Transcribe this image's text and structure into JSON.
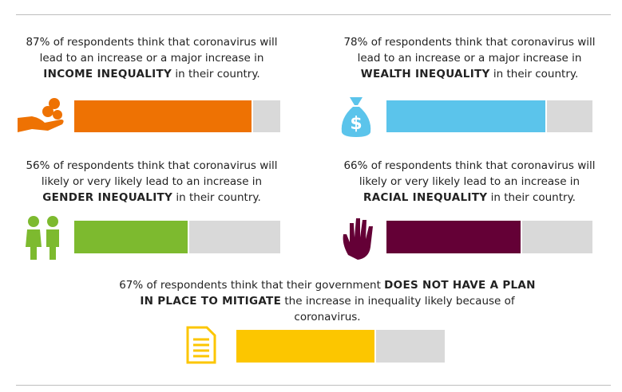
{
  "chart_data": [
    {
      "type": "bar",
      "values": [
        87
      ],
      "value_labels": [
        "87%"
      ],
      "xlim": [
        0,
        100
      ],
      "color": "#ee7203",
      "title_lead": "of respondents think that coronavirus will lead to an increase or a major increase in",
      "title_emphasis": "INCOME INEQUALITY",
      "title_tail": "in their country."
    },
    {
      "type": "bar",
      "values": [
        78
      ],
      "value_labels": [
        "78%"
      ],
      "xlim": [
        0,
        100
      ],
      "color": "#5bc4eb",
      "title_lead": "of respondents think that coronavirus will lead to an increase or a major increase in",
      "title_emphasis": "WEALTH INEQUALITY",
      "title_tail": "in their country."
    },
    {
      "type": "bar",
      "values": [
        56
      ],
      "value_labels": [
        "56%"
      ],
      "xlim": [
        0,
        100
      ],
      "color": "#7dba2f",
      "title_lead": "of respondents think that coronavirus will likely or very likely lead to an increase in",
      "title_emphasis": "GENDER INEQUALITY",
      "title_tail": "in their country."
    },
    {
      "type": "bar",
      "values": [
        66
      ],
      "value_labels": [
        "66%"
      ],
      "xlim": [
        0,
        100
      ],
      "color": "#640036",
      "title_lead": "of respondents think that coronavirus will likely or very likely lead to an increase in",
      "title_emphasis": "RACIAL INEQUALITY",
      "title_tail": "in their country."
    },
    {
      "type": "bar",
      "values": [
        67
      ],
      "value_labels": [
        "67%"
      ],
      "xlim": [
        0,
        100
      ],
      "color": "#fcc600",
      "title_lead": "of respondents think that their government",
      "title_emphasis": "DOES NOT HAVE A PLAN IN PLACE TO MITIGATE",
      "title_tail": "the increase in inequality likely because of coronavirus."
    }
  ]
}
